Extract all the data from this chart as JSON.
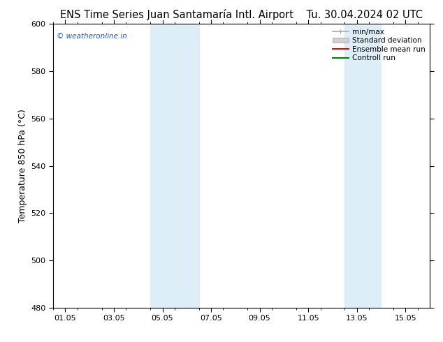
{
  "title_left": "ENS Time Series Juan Santamaría Intl. Airport",
  "title_right": "Tu. 30.04.2024 02 UTC",
  "ylabel": "Temperature 850 hPa (°C)",
  "watermark": "© weatheronline.in",
  "ylim": [
    480,
    600
  ],
  "yticks": [
    480,
    500,
    520,
    540,
    560,
    580,
    600
  ],
  "xtick_labels": [
    "01.05",
    "03.05",
    "05.05",
    "07.05",
    "09.05",
    "11.05",
    "13.05",
    "15.05"
  ],
  "xtick_positions": [
    0,
    2,
    4,
    6,
    8,
    10,
    12,
    14
  ],
  "xlim": [
    -0.5,
    15.0
  ],
  "shaded_bands": [
    {
      "x_start": 3.5,
      "x_end": 5.5
    },
    {
      "x_start": 11.5,
      "x_end": 13.0
    }
  ],
  "shaded_color": "#ddeef8",
  "background_color": "#ffffff",
  "watermark_color": "#2255cc",
  "tick_fontsize": 8,
  "label_fontsize": 9,
  "title_fontsize": 10.5
}
